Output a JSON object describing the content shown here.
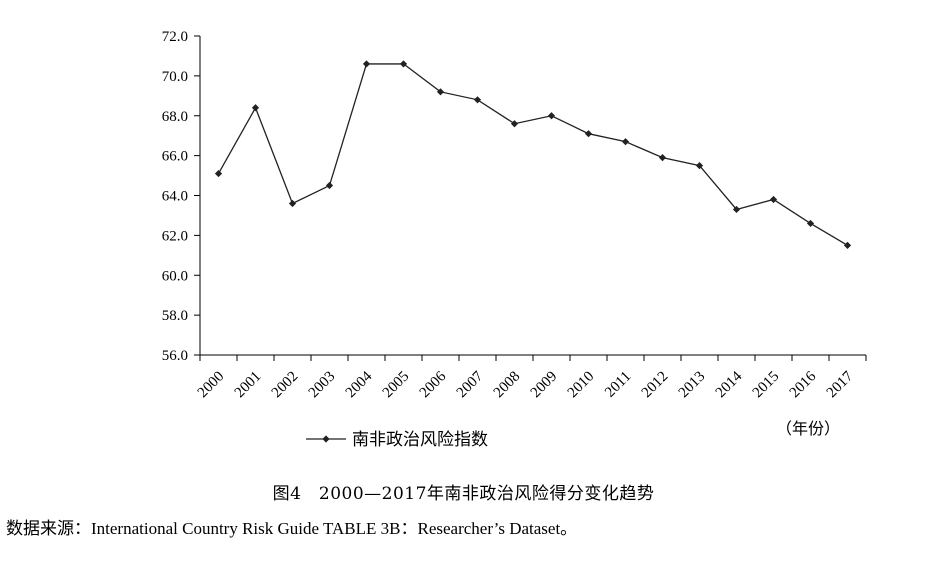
{
  "chart_data": {
    "type": "line",
    "categories": [
      "2000",
      "2001",
      "2002",
      "2003",
      "2004",
      "2005",
      "2006",
      "2007",
      "2008",
      "2009",
      "2010",
      "2011",
      "2012",
      "2013",
      "2014",
      "2015",
      "2016",
      "2017"
    ],
    "series": [
      {
        "name": "南非政治风险指数",
        "values": [
          65.1,
          68.4,
          63.6,
          64.5,
          70.6,
          70.6,
          69.2,
          68.8,
          67.6,
          68.0,
          67.1,
          66.7,
          65.9,
          65.5,
          63.3,
          63.8,
          62.6,
          61.5
        ]
      }
    ],
    "ylim": [
      56.0,
      72.0
    ],
    "yticks": [
      "56.0",
      "58.0",
      "60.0",
      "62.0",
      "64.0",
      "66.0",
      "68.0",
      "70.0",
      "72.0"
    ],
    "xunit_label": "（年份）",
    "legend_position": "bottom-left",
    "grid": false,
    "line_color": "#222222",
    "marker": "diamond"
  },
  "caption": "图4　2000—2017年南非政治风险得分变化趋势",
  "source": {
    "prefix": "数据来源：",
    "text": "International Country Risk Guide TABLE 3B：Researcher’s Dataset。"
  }
}
